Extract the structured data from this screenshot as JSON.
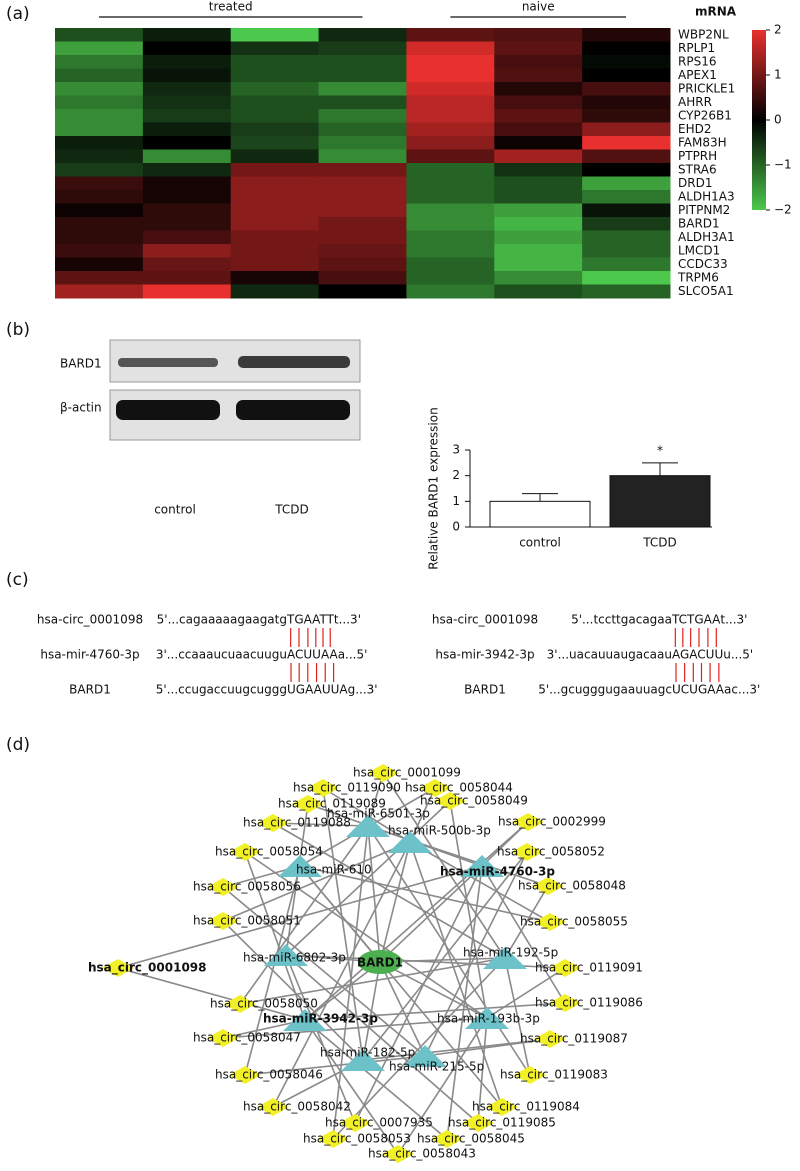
{
  "panel_labels": [
    "(a)",
    "(b)",
    "(c)",
    "(d)"
  ],
  "chart_data": [
    {
      "type": "heatmap",
      "row_title": "mRNA",
      "column_groups": [
        {
          "label": "treated",
          "columns": [
            0,
            3
          ]
        },
        {
          "label": "naive",
          "columns": [
            4,
            6
          ]
        }
      ],
      "rows": [
        "WBP2NL",
        "RPLP1",
        "RPS16",
        "APEX1",
        "PRICKLE1",
        "AHRR",
        "CYP26B1",
        "EHD2",
        "FAM83H",
        "PTPRH",
        "STRA6",
        "DRD1",
        "ALDH1A3",
        "PITPNM2",
        "BARD1",
        "ALDH3A1",
        "LMCD1",
        "CCDC33",
        "TRPM6",
        "SLCO5A1"
      ],
      "values": [
        [
          -0.8,
          -0.3,
          -2,
          -0.4,
          0.8,
          0.7,
          0.3
        ],
        [
          -1.6,
          0,
          -0.5,
          -0.6,
          1.8,
          0.8,
          0
        ],
        [
          -1.2,
          -0.3,
          -0.8,
          -0.8,
          2,
          0.6,
          -0.1
        ],
        [
          -1,
          -0.2,
          -0.8,
          -0.8,
          2,
          0.7,
          0
        ],
        [
          -1.4,
          -0.4,
          -1,
          -1.4,
          1.8,
          0.3,
          0.6
        ],
        [
          -1.2,
          -0.5,
          -0.8,
          -0.8,
          1.6,
          0.6,
          0.3
        ],
        [
          -1.4,
          -0.6,
          -0.8,
          -1.2,
          1.6,
          0.8,
          0.4
        ],
        [
          -1.4,
          -0.3,
          -0.6,
          -1,
          1.4,
          0.6,
          1.2
        ],
        [
          -0.3,
          0,
          -0.7,
          -1.2,
          1.2,
          0.1,
          2
        ],
        [
          -0.4,
          -1.4,
          -0.4,
          -1.4,
          0.8,
          1.4,
          0.7
        ],
        [
          -0.6,
          -0.4,
          1,
          1,
          -1,
          -0.5,
          0
        ],
        [
          0.5,
          0.2,
          1.2,
          1.2,
          -1,
          -0.8,
          -1.6
        ],
        [
          0.4,
          0.2,
          1.2,
          1.2,
          -1,
          -0.8,
          -1.2
        ],
        [
          0.1,
          0.4,
          1.2,
          1.2,
          -1.4,
          -1.6,
          -0.2
        ],
        [
          0.4,
          0.4,
          1.2,
          1,
          -1.4,
          -1.8,
          -0.6
        ],
        [
          0.4,
          0.6,
          1,
          1,
          -1.2,
          -1.6,
          -1
        ],
        [
          0.5,
          1.2,
          1,
          0.9,
          -1.2,
          -1.8,
          -1
        ],
        [
          0.2,
          0.9,
          1,
          0.8,
          -1,
          -1.8,
          -1.2
        ],
        [
          0.8,
          0.8,
          0.2,
          0.6,
          -1,
          -1.4,
          -2
        ],
        [
          1.4,
          2,
          -0.4,
          0,
          -1.2,
          -0.8,
          -1
        ]
      ],
      "zlim": [
        -2,
        2
      ],
      "zticks": [
        2,
        1,
        0,
        {
          "value": -1,
          "label": "−1"
        },
        {
          "value": -2,
          "label": "−2"
        }
      ],
      "colors": [
        "#4cc84c",
        "#000000",
        "#e8302e"
      ],
      "highlight_rows": [
        14
      ],
      "highlight_color": "#e03a2f"
    },
    {
      "type": "bar",
      "ylabel": "Relative BARD1 expression",
      "categories": [
        "control",
        "TCDD"
      ],
      "values": [
        1,
        2
      ],
      "errors": [
        0.3,
        0.5
      ],
      "colors": [
        "#ffffff",
        "#222222"
      ],
      "annotations": [
        null,
        "*"
      ],
      "ylim": [
        0,
        3
      ],
      "yticks": [
        0,
        1,
        2,
        3
      ]
    }
  ],
  "western_blot": {
    "proteins": [
      "BARD1",
      "β-actin"
    ],
    "lanes": [
      "control",
      "TCDD"
    ]
  },
  "alignments": [
    {
      "rows": [
        {
          "name": "hsa-circ_0001098",
          "prefix": "5'...cagaaaaagaagatg",
          "seed": "TGAATT",
          "suffix": "t...3'"
        },
        {
          "name": "hsa-mir-4760-3p",
          "prefix": "3'...ccaaaucuaacuugu",
          "seed": "ACUUAA",
          "suffix": "a...5'"
        },
        {
          "name": "BARD1",
          "prefix": "5'...ccugaccuugcuggg",
          "seed": "UGAAUU",
          "suffix": "Ag...3'"
        }
      ]
    },
    {
      "rows": [
        {
          "name": "hsa-circ_0001098",
          "prefix": "5'...tccttgacagaa",
          "seed": "TCTGAA",
          "suffix": "t...3'"
        },
        {
          "name": "hsa-mir-3942-3p",
          "prefix": "3'...uacauuaugacaau",
          "seed": "AGACUU",
          "suffix": "u...5'"
        },
        {
          "name": "BARD1",
          "prefix": "5'...gcugggugaauuagc",
          "seed": "UCUGAA",
          "suffix": "ac...3'"
        }
      ]
    }
  ],
  "seed_color": "#e0201e",
  "network": {
    "nodes": [
      {
        "label": "hsa_circ_0001099",
        "kind": "circRNA"
      },
      {
        "label": "hsa_circ_0119090",
        "kind": "circRNA"
      },
      {
        "label": "hsa_circ_0058044",
        "kind": "circRNA"
      },
      {
        "label": "hsa_circ_0119089",
        "kind": "circRNA"
      },
      {
        "label": "hsa_circ_0058049",
        "kind": "circRNA"
      },
      {
        "label": "hsa_circ_0119088",
        "kind": "circRNA"
      },
      {
        "label": "hsa_circ_0002999",
        "kind": "circRNA"
      },
      {
        "label": "hsa_circ_0058054",
        "kind": "circRNA"
      },
      {
        "label": "hsa_circ_0058052",
        "kind": "circRNA"
      },
      {
        "label": "hsa_circ_0058056",
        "kind": "circRNA"
      },
      {
        "label": "hsa_circ_0058048",
        "kind": "circRNA"
      },
      {
        "label": "hsa_circ_0058051",
        "kind": "circRNA"
      },
      {
        "label": "hsa_circ_0058055",
        "kind": "circRNA"
      },
      {
        "label": "hsa_circ_0001098",
        "kind": "circRNA"
      },
      {
        "label": "hsa_circ_0119091",
        "kind": "circRNA"
      },
      {
        "label": "hsa_circ_0058050",
        "kind": "circRNA"
      },
      {
        "label": "hsa_circ_0119086",
        "kind": "circRNA"
      },
      {
        "label": "hsa_circ_0058047",
        "kind": "circRNA"
      },
      {
        "label": "hsa_circ_0119087",
        "kind": "circRNA"
      },
      {
        "label": "hsa_circ_0058046",
        "kind": "circRNA"
      },
      {
        "label": "hsa_circ_0119083",
        "kind": "circRNA"
      },
      {
        "label": "hsa_circ_0058042",
        "kind": "circRNA"
      },
      {
        "label": "hsa_circ_0119084",
        "kind": "circRNA"
      },
      {
        "label": "hsa_circ_0007935",
        "kind": "circRNA"
      },
      {
        "label": "hsa_circ_0119085",
        "kind": "circRNA"
      },
      {
        "label": "hsa_circ_0058053",
        "kind": "circRNA"
      },
      {
        "label": "hsa_circ_0058045",
        "kind": "circRNA"
      },
      {
        "label": "hsa_circ_0058043",
        "kind": "circRNA"
      },
      {
        "label": "hsa-miR-6501-3p",
        "kind": "miRNA"
      },
      {
        "label": "hsa-miR-500b-3p",
        "kind": "miRNA"
      },
      {
        "label": "hsa-miR-610",
        "kind": "miRNA"
      },
      {
        "label": "hsa-miR-4760-3p",
        "kind": "miRNA"
      },
      {
        "label": "hsa-miR-6802-3p",
        "kind": "miRNA"
      },
      {
        "label": "hsa-miR-192-5p",
        "kind": "miRNA"
      },
      {
        "label": "hsa-miR-3942-3p",
        "kind": "miRNA"
      },
      {
        "label": "hsa-miR-193b-3p",
        "kind": "miRNA"
      },
      {
        "label": "hsa-miR-182-5p",
        "kind": "miRNA"
      },
      {
        "label": "hsa-miR-215-5p",
        "kind": "miRNA"
      },
      {
        "label": "BARD1",
        "kind": "mRNA"
      }
    ],
    "edges": [
      [
        0,
        28
      ],
      [
        0,
        33
      ],
      [
        1,
        29
      ],
      [
        1,
        36
      ],
      [
        2,
        30
      ],
      [
        2,
        29
      ],
      [
        3,
        31
      ],
      [
        3,
        32
      ],
      [
        4,
        32
      ],
      [
        4,
        35
      ],
      [
        5,
        33
      ],
      [
        5,
        28
      ],
      [
        6,
        34
      ],
      [
        6,
        31
      ],
      [
        7,
        35
      ],
      [
        7,
        34
      ],
      [
        8,
        36
      ],
      [
        8,
        37
      ],
      [
        9,
        37
      ],
      [
        9,
        30
      ],
      [
        10,
        28
      ],
      [
        10,
        33
      ],
      [
        11,
        29
      ],
      [
        11,
        36
      ],
      [
        12,
        30
      ],
      [
        12,
        29
      ],
      [
        13,
        31
      ],
      [
        13,
        34
      ],
      [
        14,
        32
      ],
      [
        14,
        35
      ],
      [
        15,
        33
      ],
      [
        15,
        28
      ],
      [
        16,
        34
      ],
      [
        16,
        31
      ],
      [
        17,
        35
      ],
      [
        17,
        34
      ],
      [
        18,
        36
      ],
      [
        18,
        37
      ],
      [
        19,
        37
      ],
      [
        19,
        30
      ],
      [
        20,
        28
      ],
      [
        20,
        33
      ],
      [
        21,
        29
      ],
      [
        21,
        36
      ],
      [
        22,
        30
      ],
      [
        22,
        29
      ],
      [
        23,
        31
      ],
      [
        23,
        32
      ],
      [
        24,
        32
      ],
      [
        24,
        35
      ],
      [
        25,
        33
      ],
      [
        25,
        28
      ],
      [
        26,
        34
      ],
      [
        26,
        31
      ],
      [
        27,
        35
      ],
      [
        27,
        34
      ],
      [
        28,
        38
      ],
      [
        29,
        38
      ],
      [
        30,
        38
      ],
      [
        31,
        38
      ],
      [
        32,
        38
      ],
      [
        33,
        38
      ],
      [
        34,
        38
      ],
      [
        35,
        38
      ],
      [
        36,
        38
      ],
      [
        37,
        38
      ]
    ],
    "highlighted": [
      13,
      31,
      34,
      38
    ],
    "highlight_color": "#e02020",
    "colors": {
      "circRNA": "#f2f026",
      "miRNA": "#6cc2c8",
      "mRNA": "#4caf50"
    }
  }
}
